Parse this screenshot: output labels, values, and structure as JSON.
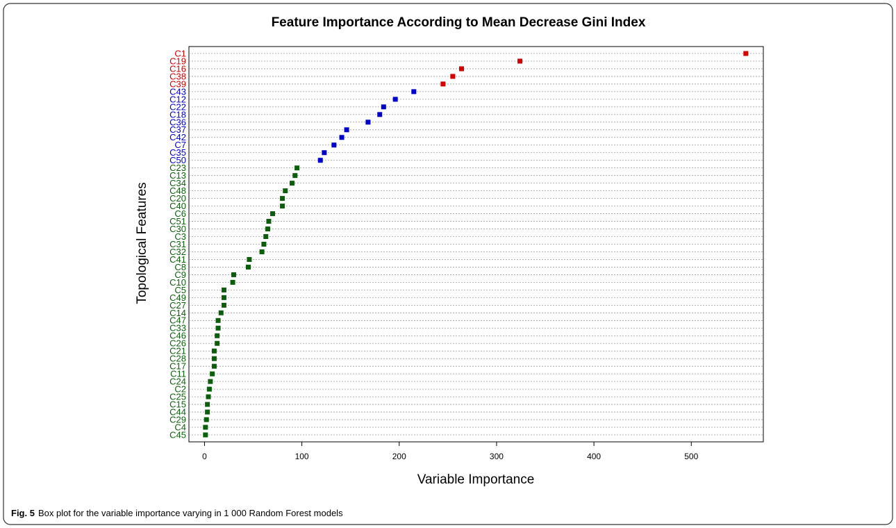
{
  "chart_data": {
    "type": "dot",
    "title": "Feature Importance According to Mean Decrease Gini Index",
    "x_label": "Variable Importance",
    "y_label": "Topological Features",
    "categories": [
      "C1",
      "C19",
      "C16",
      "C38",
      "C39",
      "C43",
      "C12",
      "C22",
      "C18",
      "C36",
      "C37",
      "C42",
      "C7",
      "C35",
      "C50",
      "C23",
      "C13",
      "C34",
      "C48",
      "C20",
      "C40",
      "C6",
      "C51",
      "C30",
      "C3",
      "C31",
      "C32",
      "C41",
      "C8",
      "C9",
      "C10",
      "C5",
      "C49",
      "C27",
      "C14",
      "C47",
      "C33",
      "C46",
      "C26",
      "C21",
      "C28",
      "C17",
      "C11",
      "C24",
      "C2",
      "C25",
      "C15",
      "C44",
      "C29",
      "C4",
      "C45"
    ],
    "values": [
      556,
      324,
      264,
      255,
      245,
      215,
      196,
      184,
      180,
      168,
      146,
      141,
      133,
      123,
      119,
      95,
      93,
      90,
      83,
      80,
      80,
      70,
      66,
      65,
      63,
      61,
      59,
      46,
      45,
      30,
      29,
      20,
      20,
      20,
      17,
      14,
      14,
      13,
      13,
      10,
      10,
      10,
      8,
      6,
      5,
      4,
      3,
      3,
      2,
      1,
      1
    ],
    "colors": [
      "#d40000",
      "#d40000",
      "#d40000",
      "#d40000",
      "#d40000",
      "#0000cc",
      "#0000cc",
      "#0000cc",
      "#0000cc",
      "#0000cc",
      "#0000cc",
      "#0000cc",
      "#0000cc",
      "#0000cc",
      "#0000cc",
      "#0b5e0b",
      "#0b5e0b",
      "#0b5e0b",
      "#0b5e0b",
      "#0b5e0b",
      "#0b5e0b",
      "#0b5e0b",
      "#0b5e0b",
      "#0b5e0b",
      "#0b5e0b",
      "#0b5e0b",
      "#0b5e0b",
      "#0b5e0b",
      "#0b5e0b",
      "#0b5e0b",
      "#0b5e0b",
      "#0b5e0b",
      "#0b5e0b",
      "#0b5e0b",
      "#0b5e0b",
      "#0b5e0b",
      "#0b5e0b",
      "#0b5e0b",
      "#0b5e0b",
      "#0b5e0b",
      "#0b5e0b",
      "#0b5e0b",
      "#0b5e0b",
      "#0b5e0b",
      "#0b5e0b",
      "#0b5e0b",
      "#0b5e0b",
      "#0b5e0b",
      "#0b5e0b",
      "#0b5e0b",
      "#0b5e0b"
    ],
    "xlim": [
      -16,
      574
    ],
    "xticks": [
      0,
      100,
      200,
      300,
      400,
      500
    ],
    "grid": true
  },
  "caption": {
    "label": "Fig. 5",
    "text": "Box plot for the variable importance varying in 1 000 Random Forest models"
  }
}
